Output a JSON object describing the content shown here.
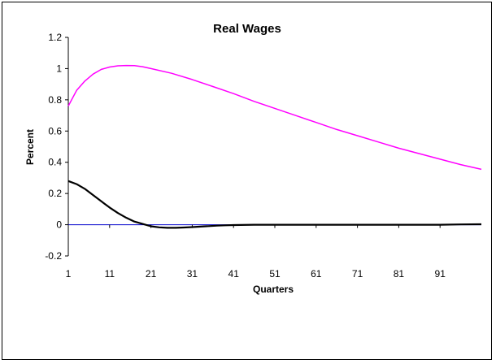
{
  "chart_data": {
    "type": "line",
    "title": "Real Wages",
    "xlabel": "Quarters",
    "ylabel": "Percent",
    "xlim": [
      1,
      101
    ],
    "ylim": [
      -0.2,
      1.2
    ],
    "x_ticks": [
      1,
      11,
      21,
      31,
      41,
      51,
      61,
      71,
      81,
      91
    ],
    "y_ticks": [
      -0.2,
      0,
      0.2,
      0.4,
      0.6,
      0.8,
      1,
      1.2
    ],
    "y_tick_labels": [
      "-0.2",
      "0",
      "0.2",
      "0.4",
      "0.6",
      "0.8",
      "1",
      "1.2"
    ],
    "grid": false,
    "legend": "none",
    "zero_line_color": "#0000CC",
    "series": [
      {
        "color": "#FF00FF",
        "points": [
          [
            1,
            0.76
          ],
          [
            3,
            0.86
          ],
          [
            5,
            0.92
          ],
          [
            7,
            0.965
          ],
          [
            9,
            0.995
          ],
          [
            11,
            1.01
          ],
          [
            13,
            1.018
          ],
          [
            15,
            1.02
          ],
          [
            17,
            1.019
          ],
          [
            19,
            1.012
          ],
          [
            21,
            1.0
          ],
          [
            26,
            0.97
          ],
          [
            31,
            0.93
          ],
          [
            36,
            0.885
          ],
          [
            41,
            0.84
          ],
          [
            46,
            0.79
          ],
          [
            51,
            0.745
          ],
          [
            56,
            0.7
          ],
          [
            61,
            0.655
          ],
          [
            66,
            0.61
          ],
          [
            71,
            0.57
          ],
          [
            76,
            0.53
          ],
          [
            81,
            0.49
          ],
          [
            86,
            0.455
          ],
          [
            91,
            0.42
          ],
          [
            96,
            0.385
          ],
          [
            101,
            0.355
          ]
        ]
      },
      {
        "color": "#000000",
        "points": [
          [
            1,
            0.28
          ],
          [
            3,
            0.26
          ],
          [
            5,
            0.23
          ],
          [
            7,
            0.19
          ],
          [
            9,
            0.15
          ],
          [
            11,
            0.11
          ],
          [
            13,
            0.075
          ],
          [
            15,
            0.045
          ],
          [
            17,
            0.02
          ],
          [
            19,
            0.005
          ],
          [
            21,
            -0.01
          ],
          [
            23,
            -0.017
          ],
          [
            25,
            -0.02
          ],
          [
            27,
            -0.02
          ],
          [
            29,
            -0.018
          ],
          [
            31,
            -0.015
          ],
          [
            33,
            -0.012
          ],
          [
            35,
            -0.009
          ],
          [
            37,
            -0.006
          ],
          [
            39,
            -0.004
          ],
          [
            41,
            -0.002
          ],
          [
            46,
            0.0
          ],
          [
            51,
            0.0
          ],
          [
            61,
            0.0
          ],
          [
            71,
            0.0
          ],
          [
            81,
            0.0
          ],
          [
            91,
            0.0
          ],
          [
            96,
            0.002
          ],
          [
            101,
            0.003
          ]
        ]
      }
    ]
  }
}
